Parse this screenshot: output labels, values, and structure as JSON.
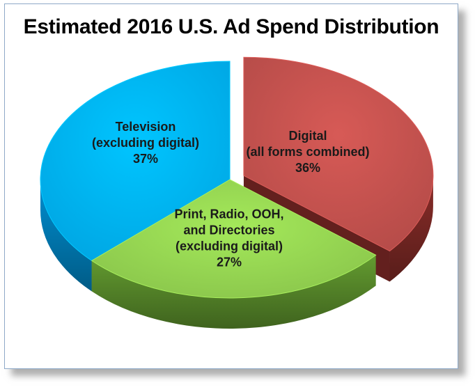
{
  "chart_data": {
    "type": "pie",
    "title": "Estimated 2016 U.S. Ad Spend Distribution",
    "slices": [
      {
        "name": "Digital",
        "lines": [
          "Digital",
          "(all forms combined)",
          "36%"
        ],
        "value": 36,
        "color": "#c0504d",
        "side_color": "#6e2421",
        "exploded": true
      },
      {
        "name": "Print, Radio, OOH, and Directories",
        "lines": [
          "Print, Radio, OOH,",
          "and Directories",
          "(excluding digital)",
          "27%"
        ],
        "value": 27,
        "color": "#92d050",
        "side_color": "#4f7c26",
        "exploded": false
      },
      {
        "name": "Television",
        "lines": [
          "Television",
          "(excluding digital)",
          "37%"
        ],
        "value": 37,
        "color": "#00b0f0",
        "side_color": "#0072a8",
        "exploded": false
      }
    ],
    "legend": "none"
  }
}
